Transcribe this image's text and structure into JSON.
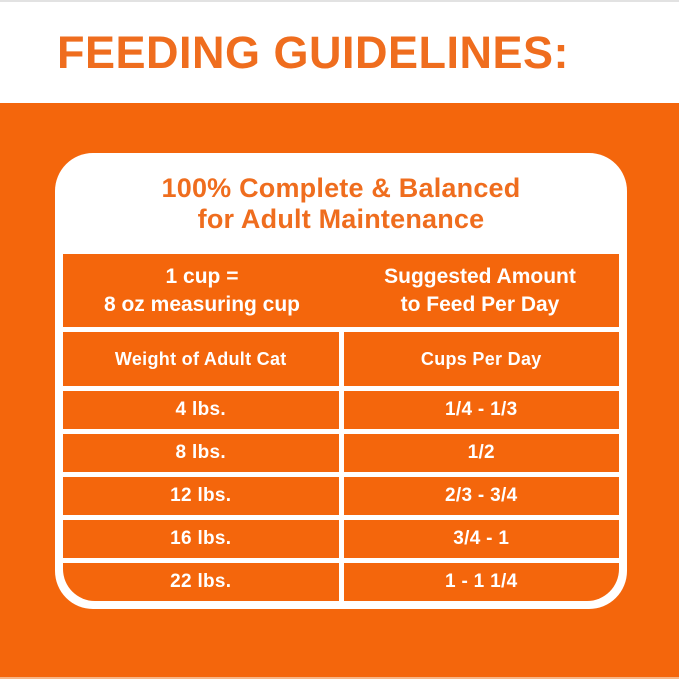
{
  "colors": {
    "orange_bg": "#f4660c",
    "heading_orange": "#ef6d1e",
    "text_white": "#ffffff"
  },
  "header": {
    "title": "FEEDING GUIDELINES:"
  },
  "card": {
    "title_line1": "100% Complete & Balanced",
    "title_line2": "for Adult Maintenance",
    "header": {
      "left_line1": "1 cup =",
      "left_line2": "8 oz measuring cup",
      "right_line1": "Suggested Amount",
      "right_line2": "to Feed Per Day"
    },
    "columns": [
      "Weight of Adult Cat",
      "Cups Per Day"
    ],
    "rows": [
      {
        "weight": "4 lbs.",
        "cups": "1/4 - 1/3"
      },
      {
        "weight": "8 lbs.",
        "cups": "1/2"
      },
      {
        "weight": "12 lbs.",
        "cups": "2/3 - 3/4"
      },
      {
        "weight": "16 lbs.",
        "cups": "3/4 - 1"
      },
      {
        "weight": "22 lbs.",
        "cups": "1 - 1 1/4"
      }
    ]
  }
}
